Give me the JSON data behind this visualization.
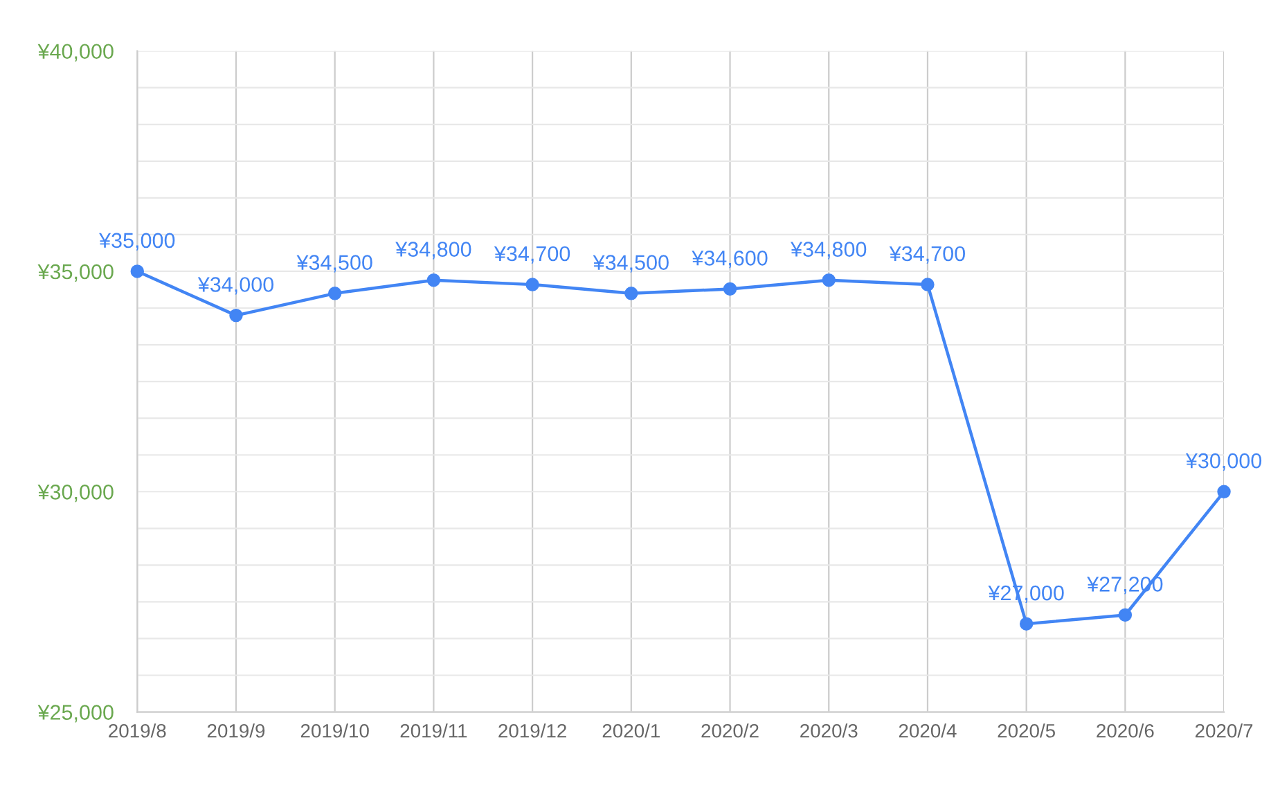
{
  "chart_data": {
    "type": "line",
    "categories": [
      "2019/8",
      "2019/9",
      "2019/10",
      "2019/11",
      "2019/12",
      "2020/1",
      "2020/2",
      "2020/3",
      "2020/4",
      "2020/5",
      "2020/6",
      "2020/7"
    ],
    "series": [
      {
        "color": "#4285f4",
        "values": [
          35000,
          34000,
          34500,
          34800,
          34700,
          34500,
          34600,
          34800,
          34700,
          27000,
          27200,
          30000
        ],
        "value_labels": [
          "¥35,000",
          "¥34,000",
          "¥34,500",
          "¥34,800",
          "¥34,700",
          "¥34,500",
          "¥34,600",
          "¥34,800",
          "¥34,700",
          "¥27,000",
          "¥27,200",
          "¥30,000"
        ]
      }
    ],
    "ylim": [
      25000,
      40000
    ],
    "yticks": [
      {
        "value": 25000,
        "label": "¥25,000"
      },
      {
        "value": 25833,
        "label": null
      },
      {
        "value": 26667,
        "label": null
      },
      {
        "value": 27500,
        "label": null
      },
      {
        "value": 28333,
        "label": null
      },
      {
        "value": 29167,
        "label": null
      },
      {
        "value": 30000,
        "label": "¥30,000"
      },
      {
        "value": 30833,
        "label": null
      },
      {
        "value": 31667,
        "label": null
      },
      {
        "value": 32500,
        "label": null
      },
      {
        "value": 33333,
        "label": null
      },
      {
        "value": 34167,
        "label": null
      },
      {
        "value": 35000,
        "label": "¥35,000"
      },
      {
        "value": 35833,
        "label": null
      },
      {
        "value": 36667,
        "label": null
      },
      {
        "value": 37500,
        "label": null
      },
      {
        "value": 38333,
        "label": null
      },
      {
        "value": 39167,
        "label": null
      },
      {
        "value": 40000,
        "label": "¥40,000"
      }
    ],
    "grid": true,
    "marker": "circle",
    "line_style": "solid",
    "legend": false
  }
}
